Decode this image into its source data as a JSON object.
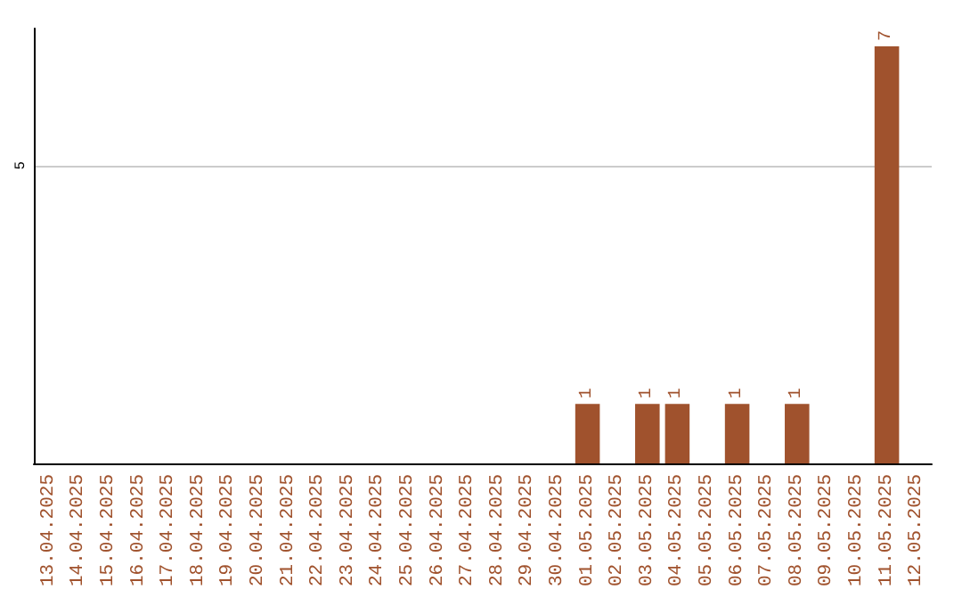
{
  "chart_data": {
    "type": "bar",
    "categories": [
      "13.04.2025",
      "14.04.2025",
      "15.04.2025",
      "16.04.2025",
      "17.04.2025",
      "18.04.2025",
      "19.04.2025",
      "20.04.2025",
      "21.04.2025",
      "22.04.2025",
      "23.04.2025",
      "24.04.2025",
      "25.04.2025",
      "26.04.2025",
      "27.04.2025",
      "28.04.2025",
      "29.04.2025",
      "30.04.2025",
      "01.05.2025",
      "02.05.2025",
      "03.05.2025",
      "04.05.2025",
      "05.05.2025",
      "06.05.2025",
      "07.05.2025",
      "08.05.2025",
      "09.05.2025",
      "10.05.2025",
      "11.05.2025",
      "12.05.2025"
    ],
    "values": [
      null,
      null,
      null,
      null,
      null,
      null,
      null,
      null,
      null,
      null,
      null,
      null,
      null,
      null,
      null,
      null,
      null,
      null,
      1,
      null,
      1,
      1,
      null,
      1,
      null,
      1,
      null,
      null,
      7,
      null
    ],
    "color": "#a0522d",
    "ylim": [
      0,
      7.3
    ],
    "yticks": [
      5
    ],
    "grid": "y",
    "data_labels": true
  }
}
